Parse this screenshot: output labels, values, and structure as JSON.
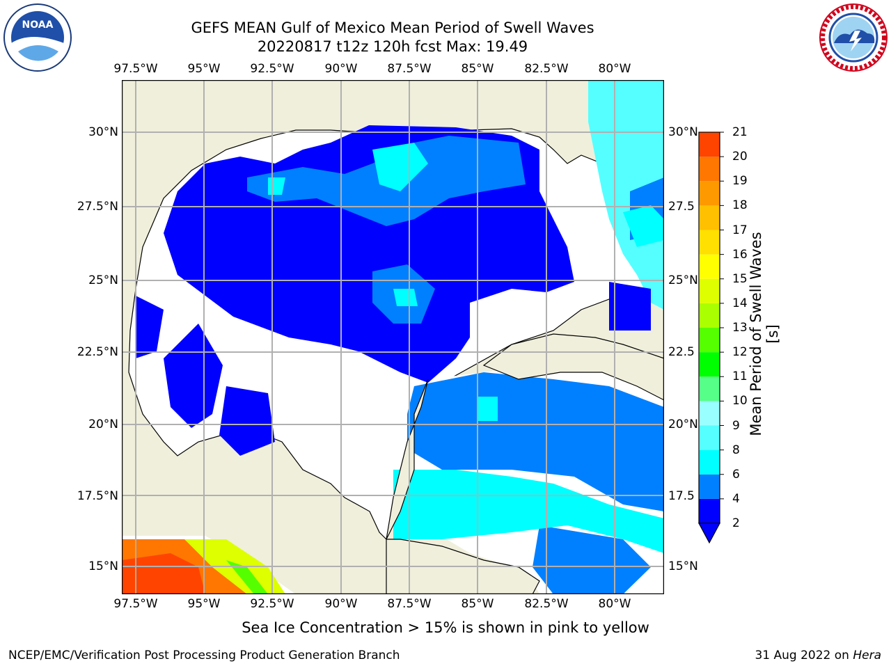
{
  "header": {
    "title_line1": "GEFS MEAN Gulf of Mexico Mean Period of Swell Waves",
    "title_line2": "20220817 t12z 120h fcst   Max: 19.49"
  },
  "logos": {
    "left": "noaa-logo",
    "right": "national-weather-service-logo"
  },
  "map": {
    "lon_labels": [
      "97.5°W",
      "95°W",
      "92.5°W",
      "90°W",
      "87.5°W",
      "85°W",
      "82.5°W",
      "80°W"
    ],
    "lat_labels_left": [
      "30°N",
      "27.5°N",
      "25°N",
      "22.5°N",
      "20°N",
      "17.5°N",
      "15°N"
    ],
    "lat_labels_right": [
      "30°N",
      "27.5",
      "25°N",
      "22.5",
      "20°N",
      "17.5",
      "15°N"
    ],
    "colors": {
      "land": "#f0efdc",
      "ocean_none": "#ffffff",
      "grid": "#b0b0b0"
    }
  },
  "colorbar": {
    "title": "Mean Period of Swell Waves [s]",
    "ticks": [
      "2",
      "4",
      "6",
      "8",
      "9",
      "10",
      "11",
      "12",
      "13",
      "14",
      "15",
      "16",
      "17",
      "18",
      "19",
      "20",
      "21"
    ],
    "colors": [
      "#0000ff",
      "#0080ff",
      "#00ffff",
      "#55ffff",
      "#99ffff",
      "#55ff88",
      "#00ff00",
      "#55ff00",
      "#aaff00",
      "#ddff00",
      "#ffff00",
      "#ffe000",
      "#ffc000",
      "#ff9900",
      "#ff7700",
      "#ff4400",
      "#ff0000"
    ]
  },
  "note": "Sea Ice Concentration > 15% is shown in pink to yellow",
  "footer": {
    "left": "NCEP/EMC/Verification Post Processing Product Generation Branch",
    "right_date": "31 Aug 2022 on ",
    "right_host": "Hera"
  }
}
